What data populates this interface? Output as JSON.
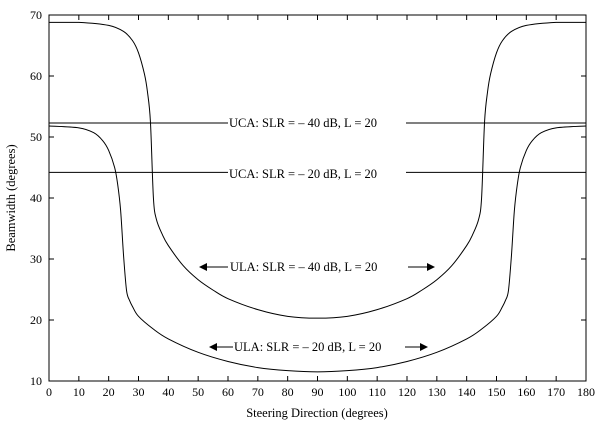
{
  "chart_data": {
    "type": "line",
    "xlabel": "Steering Direction (degrees)",
    "ylabel": "Beamwidth (degrees)",
    "xlim": [
      0,
      180
    ],
    "ylim": [
      10,
      70
    ],
    "xticks": [
      0,
      10,
      20,
      30,
      40,
      50,
      60,
      70,
      80,
      90,
      100,
      110,
      120,
      130,
      140,
      150,
      160,
      170,
      180
    ],
    "yticks": [
      10,
      20,
      30,
      40,
      50,
      60,
      70
    ],
    "grid": false,
    "series": [
      {
        "name": "UCA: SLR = – 40 dB, L = 20",
        "x": [
          0,
          180
        ],
        "y": [
          52.3,
          52.3
        ]
      },
      {
        "name": "UCA: SLR = – 20 dB, L = 20",
        "x": [
          0,
          180
        ],
        "y": [
          44.2,
          44.2
        ]
      },
      {
        "name": "ULA: SLR = – 40 dB, L = 20",
        "x": [
          0,
          10,
          20,
          25,
          28,
          30,
          32,
          33,
          34,
          35,
          36,
          38,
          40,
          45,
          50,
          55,
          60,
          70,
          80,
          90,
          100,
          110,
          120,
          125,
          130,
          135,
          140,
          142,
          144,
          145,
          146,
          147,
          148,
          150,
          152,
          155,
          160,
          170,
          180
        ],
        "y": [
          68.8,
          68.8,
          68.3,
          67.3,
          65.8,
          63.8,
          60.3,
          57.4,
          52.5,
          40.0,
          36.5,
          34.0,
          32.2,
          28.9,
          26.6,
          24.9,
          23.5,
          21.7,
          20.6,
          20.3,
          20.6,
          21.7,
          23.5,
          24.9,
          26.6,
          28.9,
          32.2,
          34.0,
          36.5,
          40.0,
          52.5,
          57.4,
          60.3,
          63.8,
          65.8,
          67.3,
          68.3,
          68.8,
          68.8
        ]
      },
      {
        "name": "ULA: SLR = – 20 dB, L = 20",
        "x": [
          0,
          10,
          15,
          18,
          20,
          22,
          23,
          24,
          25,
          26,
          27,
          28,
          30,
          35,
          40,
          50,
          60,
          70,
          80,
          90,
          100,
          110,
          120,
          130,
          140,
          145,
          150,
          152,
          153,
          154,
          155,
          156,
          157,
          158,
          160,
          162,
          165,
          170,
          180
        ],
        "y": [
          51.8,
          51.5,
          50.7,
          49.4,
          47.8,
          45.0,
          42.3,
          38.0,
          30.5,
          24.8,
          23.2,
          22.2,
          20.6,
          18.5,
          16.9,
          14.7,
          13.2,
          12.2,
          11.7,
          11.5,
          11.7,
          12.2,
          13.2,
          14.7,
          16.9,
          18.5,
          20.6,
          22.2,
          23.2,
          24.8,
          30.5,
          38.0,
          42.3,
          45.0,
          47.8,
          49.4,
          50.7,
          51.5,
          51.8
        ]
      }
    ]
  }
}
